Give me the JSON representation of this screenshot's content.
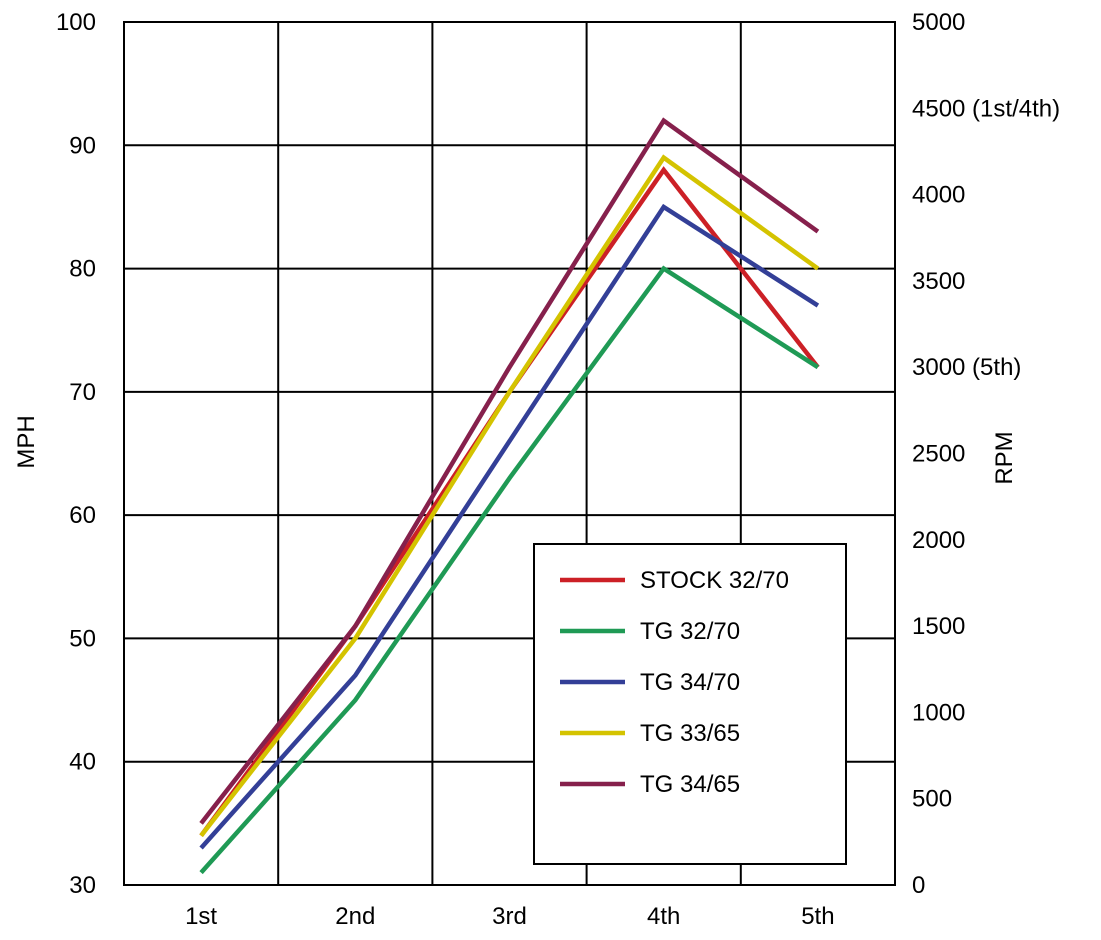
{
  "chart_data": {
    "type": "line",
    "categories": [
      "1st",
      "2nd",
      "3rd",
      "4th",
      "5th"
    ],
    "ylabel": "MPH",
    "y2label": "RPM",
    "ylim": [
      30,
      100
    ],
    "yticks": [
      30,
      40,
      50,
      60,
      70,
      80,
      90,
      100
    ],
    "y2lim": [
      0,
      5000
    ],
    "y2ticks": [
      "0",
      "500",
      "1000",
      "1500",
      "2000",
      "2500",
      "3000 (5th)",
      "3500",
      "4000",
      "4500 (1st/4th)",
      "5000"
    ],
    "grid": true,
    "legend_position": "bottom-right",
    "series": [
      {
        "name": "STOCK 32/70",
        "color": "#cc2026",
        "values": [
          34,
          51,
          70,
          88,
          72
        ]
      },
      {
        "name": "TG 32/70",
        "color": "#1f9a55",
        "values": [
          31,
          45,
          63,
          80,
          72
        ]
      },
      {
        "name": "TG 34/70",
        "color": "#333f97",
        "values": [
          33,
          47,
          66,
          85,
          77
        ]
      },
      {
        "name": "TG 33/65",
        "color": "#d4c300",
        "values": [
          34,
          50,
          70,
          89,
          80
        ]
      },
      {
        "name": "TG 34/65",
        "color": "#86204c",
        "values": [
          35,
          51,
          72,
          92,
          83
        ]
      }
    ]
  }
}
